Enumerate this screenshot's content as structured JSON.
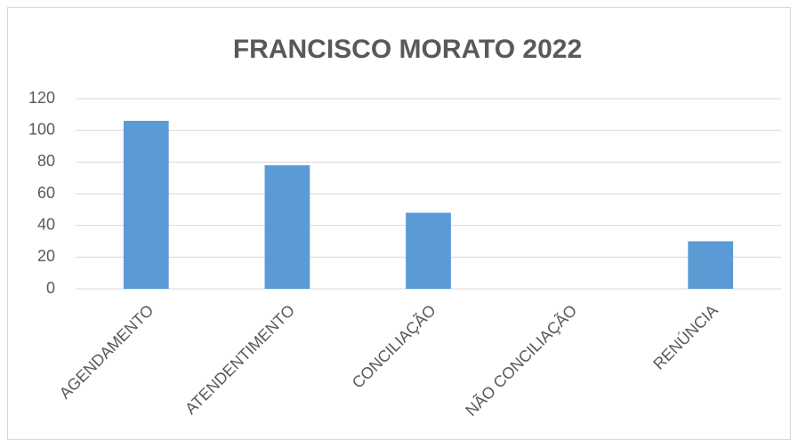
{
  "chart_data": {
    "type": "bar",
    "title": "FRANCISCO MORATO 2022",
    "categories": [
      "AGENDAMENTO",
      "ATENDENTIMENTO",
      "CONCILIAÇÃO",
      "NÃO CONCILIAÇÃO",
      "RENÚNCIA"
    ],
    "values": [
      106,
      78,
      48,
      0,
      30
    ],
    "color": "#5b9bd5",
    "ylim": [
      0,
      120
    ],
    "yticks": [
      0,
      20,
      40,
      60,
      80,
      100,
      120
    ],
    "grid": true
  }
}
